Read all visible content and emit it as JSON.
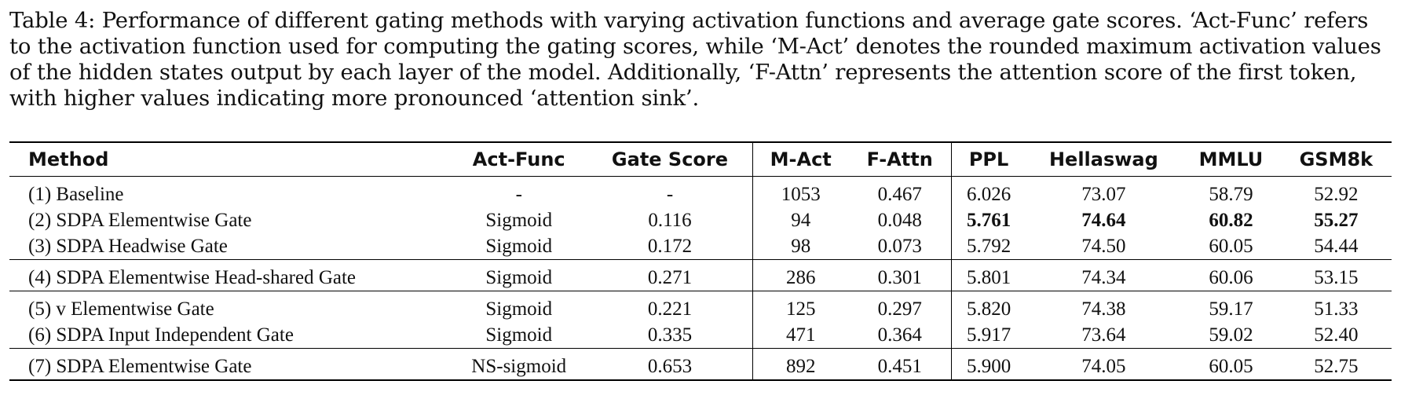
{
  "caption": {
    "label": "Table 4:",
    "text": "Performance of different gating methods with varying activation functions and average gate scores. ‘Act-Func’ refers to the activation function used for computing the gating scores, while ‘M-Act’ denotes the rounded maximum activation values of the hidden states output by each layer of the model. Additionally, ‘F-Attn’ represents the attention score of the first token, with higher values indicating more pronounced ‘attention sink’."
  },
  "table": {
    "headers": [
      "Method",
      "Act-Func",
      "Gate Score",
      "M-Act",
      "F-Attn",
      "PPL",
      "Hellaswag",
      "MMLU",
      "GSM8k"
    ],
    "rows": [
      [
        "(1) Baseline",
        "-",
        "-",
        "1053",
        "0.467",
        "6.026",
        "73.07",
        "58.79",
        "52.92"
      ],
      [
        "(2) SDPA Elementwise Gate",
        "Sigmoid",
        "0.116",
        "94",
        "0.048",
        "5.761",
        "74.64",
        "60.82",
        "55.27"
      ],
      [
        "(3) SDPA Headwise Gate",
        "Sigmoid",
        "0.172",
        "98",
        "0.073",
        "5.792",
        "74.50",
        "60.05",
        "54.44"
      ],
      [
        "(4) SDPA Elementwise Head-shared Gate",
        "Sigmoid",
        "0.271",
        "286",
        "0.301",
        "5.801",
        "74.34",
        "60.06",
        "53.15"
      ],
      [
        "(5) v Elementwise Gate",
        "Sigmoid",
        "0.221",
        "125",
        "0.297",
        "5.820",
        "74.38",
        "59.17",
        "51.33"
      ],
      [
        "(6) SDPA Input Independent Gate",
        "Sigmoid",
        "0.335",
        "471",
        "0.364",
        "5.917",
        "73.64",
        "59.02",
        "52.40"
      ],
      [
        "(7) SDPA Elementwise Gate",
        "NS-sigmoid",
        "0.653",
        "892",
        "0.451",
        "5.900",
        "74.05",
        "60.05",
        "52.75"
      ]
    ]
  }
}
